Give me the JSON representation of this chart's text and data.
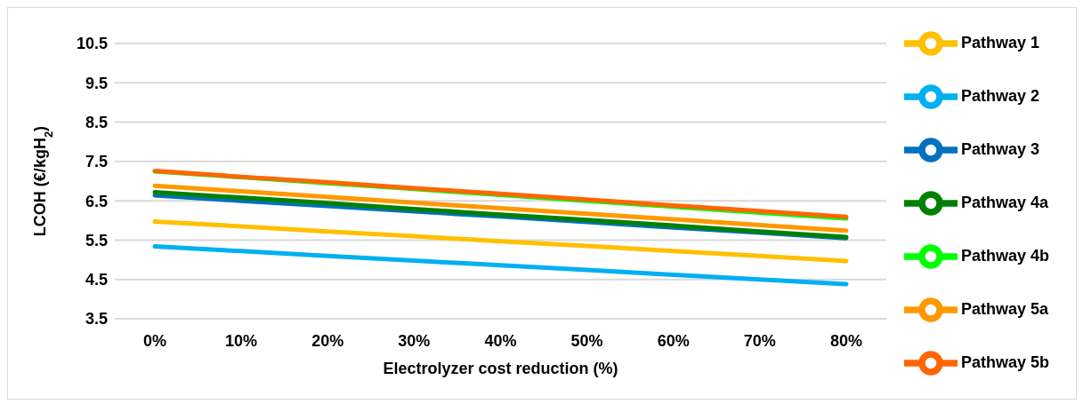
{
  "chart_data": {
    "type": "line",
    "xlabel": "Electrolyzer cost reduction (%)",
    "ylabel": "LCOH (€/kgH$_{2}$)",
    "categories": [
      "0%",
      "10%",
      "20%",
      "30%",
      "40%",
      "50%",
      "60%",
      "70%",
      "80%"
    ],
    "series": [
      {
        "name": "Pathway 1",
        "color": "#ffc000",
        "values": [
          5.97,
          5.85,
          5.72,
          5.6,
          5.47,
          5.35,
          5.22,
          5.1,
          4.97
        ]
      },
      {
        "name": "Pathway 2",
        "color": "#00b0f0",
        "values": [
          5.34,
          5.22,
          5.1,
          4.98,
          4.86,
          4.74,
          4.62,
          4.5,
          4.38
        ]
      },
      {
        "name": "Pathway 3",
        "color": "#0070c0",
        "values": [
          6.64,
          6.5,
          6.37,
          6.23,
          6.1,
          5.96,
          5.82,
          5.69,
          5.55
        ]
      },
      {
        "name": "Pathway 4a",
        "color": "#008000",
        "values": [
          6.72,
          6.58,
          6.44,
          6.29,
          6.15,
          6.01,
          5.87,
          5.72,
          5.58
        ]
      },
      {
        "name": "Pathway 4b",
        "color": "#00ff00",
        "values": [
          7.25,
          7.1,
          6.95,
          6.8,
          6.65,
          6.5,
          6.35,
          6.2,
          6.05
        ]
      },
      {
        "name": "Pathway 5a",
        "color": "#ff9900",
        "values": [
          6.88,
          6.74,
          6.6,
          6.45,
          6.31,
          6.17,
          6.03,
          5.88,
          5.74
        ]
      },
      {
        "name": "Pathway 5b",
        "color": "#ff6600",
        "values": [
          7.26,
          7.11,
          6.97,
          6.82,
          6.68,
          6.53,
          6.38,
          6.24,
          6.09
        ]
      }
    ],
    "ylim": [
      3.5,
      10.5
    ],
    "yticks": [
      3.5,
      4.5,
      5.5,
      6.5,
      7.5,
      8.5,
      9.5,
      10.5
    ],
    "grid": "y",
    "legend": "right",
    "marker": "none",
    "line_style": "solid"
  }
}
